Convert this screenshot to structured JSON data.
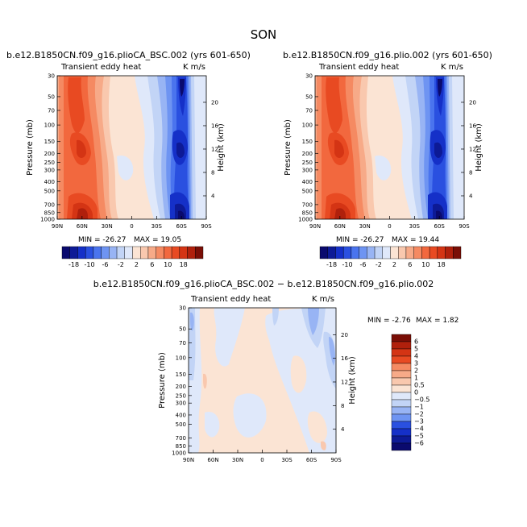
{
  "figure": {
    "title": "SON"
  },
  "colors": {
    "scale18": [
      "#0a0a6e",
      "#0d1a96",
      "#1530c8",
      "#2a50e0",
      "#4a74ee",
      "#6e94f2",
      "#98b4f4",
      "#c2d4f6",
      "#dfe8fa",
      "#fbe4d4",
      "#f9c8ae",
      "#f7aa88",
      "#f58a62",
      "#f2683e",
      "#e84a22",
      "#d43414",
      "#b0200c",
      "#7a0e06"
    ],
    "diff": [
      "#0a0a6e",
      "#0d1a96",
      "#1530c8",
      "#2a50e0",
      "#4a74ee",
      "#6e94f2",
      "#98b4f4",
      "#c2d4f6",
      "#dfe8fa",
      "#fbe4d4",
      "#f9c8ae",
      "#f7aa88",
      "#f58a62",
      "#f2683e",
      "#e84a22",
      "#d43414",
      "#b0200c",
      "#7a0e06"
    ]
  },
  "chart_data": [
    {
      "id": "panel-left",
      "type": "heatmap",
      "title": "b.e12.B1850CN.f09_g16.plioCA_BSC.002 (yrs 601-650)",
      "left_label": "Transient eddy heat",
      "right_label": "K m/s",
      "ylabel": "Pressure (mb)",
      "ylabel_right": "Height (km)",
      "x_ticks": [
        "90N",
        "60N",
        "30N",
        "0",
        "30S",
        "60S",
        "90S"
      ],
      "y_ticks": [
        "30",
        "50",
        "70",
        "100",
        "150",
        "200",
        "250",
        "300",
        "400",
        "500",
        "700",
        "850",
        "1000"
      ],
      "y_ticks_right": [
        "4",
        "8",
        "12",
        "16",
        "20"
      ],
      "min_label": "MIN = -26.27",
      "max_label": "MAX = 19.05",
      "colorbar_labels": [
        "-18",
        "-10",
        "-6",
        "-2",
        "2",
        "6",
        "10",
        "18"
      ],
      "features": [
        {
          "lat": 62,
          "p": 800,
          "value": 19.05
        },
        {
          "lat": 58,
          "p": 180,
          "value": 12
        },
        {
          "lat": 65,
          "p": 40,
          "value": 10
        },
        {
          "lat": 45,
          "p": 600,
          "value": 8
        },
        {
          "lat": -62,
          "p": 800,
          "value": -26.27
        },
        {
          "lat": -60,
          "p": 200,
          "value": -18
        },
        {
          "lat": -65,
          "p": 40,
          "value": -16
        },
        {
          "lat": -45,
          "p": 600,
          "value": -8
        }
      ]
    },
    {
      "id": "panel-right",
      "type": "heatmap",
      "title": "b.e12.B1850CN.f09_g16.plio.002 (yrs 601-650)",
      "left_label": "Transient eddy heat",
      "right_label": "K m/s",
      "ylabel": "Pressure (mb)",
      "ylabel_right": "Height (km)",
      "x_ticks": [
        "90N",
        "60N",
        "30N",
        "0",
        "30S",
        "60S",
        "90S"
      ],
      "y_ticks": [
        "30",
        "50",
        "70",
        "100",
        "150",
        "200",
        "250",
        "300",
        "400",
        "500",
        "700",
        "850",
        "1000"
      ],
      "y_ticks_right": [
        "4",
        "8",
        "12",
        "16",
        "20"
      ],
      "min_label": "MIN = -26.27",
      "max_label": "MAX = 19.44",
      "colorbar_labels": [
        "-18",
        "-10",
        "-6",
        "-2",
        "2",
        "6",
        "10",
        "18"
      ],
      "features": [
        {
          "lat": 62,
          "p": 800,
          "value": 19.44
        },
        {
          "lat": 58,
          "p": 180,
          "value": 12
        },
        {
          "lat": 65,
          "p": 40,
          "value": 10
        },
        {
          "lat": 45,
          "p": 600,
          "value": 8
        },
        {
          "lat": -62,
          "p": 800,
          "value": -26.27
        },
        {
          "lat": -60,
          "p": 200,
          "value": -18
        },
        {
          "lat": -65,
          "p": 40,
          "value": -16
        },
        {
          "lat": -45,
          "p": 600,
          "value": -8
        }
      ]
    },
    {
      "id": "panel-diff",
      "type": "heatmap",
      "title": "b.e12.B1850CN.f09_g16.plioCA_BSC.002 − b.e12.B1850CN.f09_g16.plio.002",
      "left_label": "Transient eddy heat",
      "right_label": "K m/s",
      "ylabel": "Pressure (mb)",
      "ylabel_right": "Height (km)",
      "x_ticks": [
        "90N",
        "60N",
        "30N",
        "0",
        "30S",
        "60S",
        "90S"
      ],
      "y_ticks": [
        "30",
        "50",
        "70",
        "100",
        "150",
        "200",
        "250",
        "300",
        "400",
        "500",
        "700",
        "850",
        "1000"
      ],
      "y_ticks_right": [
        "4",
        "8",
        "12",
        "16",
        "20"
      ],
      "min_label": "MIN =  -2.76",
      "max_label": "MAX =   1.82",
      "colorbar_labels": [
        "6",
        "5",
        "4",
        "3",
        "2",
        "1",
        "0.5",
        "0",
        "−0.5",
        "−1",
        "−2",
        "−3",
        "−4",
        "−5",
        "−6"
      ],
      "features": [
        {
          "lat": 70,
          "p": 150,
          "value": 1.82
        },
        {
          "lat": -82,
          "p": 900,
          "value": 1.2
        },
        {
          "lat": -70,
          "p": 80,
          "value": -2.76
        },
        {
          "lat": 40,
          "p": 40,
          "value": -0.8
        },
        {
          "lat": -40,
          "p": 40,
          "value": -0.8
        }
      ]
    }
  ]
}
